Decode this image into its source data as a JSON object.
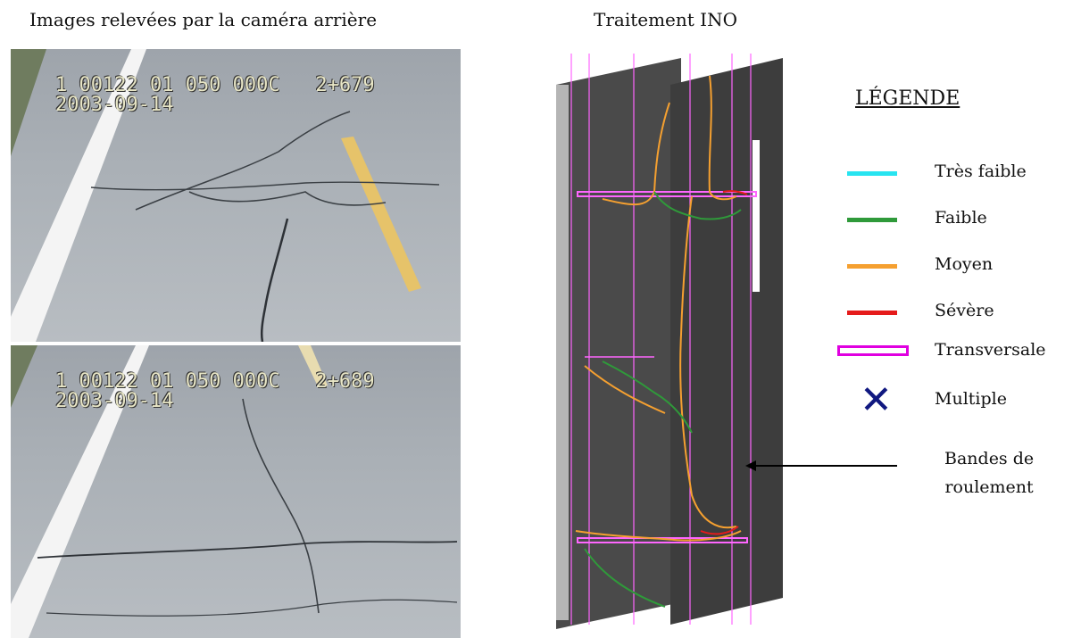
{
  "titles": {
    "left": "Images relevées par la caméra arrière",
    "right": "Traitement INO"
  },
  "camera_frames": [
    {
      "code": "1 00122 01 050 000C",
      "chainage": "2+679",
      "date": "2003-09-14"
    },
    {
      "code": "1 00122 01 050 000C",
      "chainage": "2+689",
      "date": "2003-09-14"
    }
  ],
  "legend": {
    "title": "LÉGENDE",
    "items": [
      {
        "label": "Très faible",
        "symbol": "line",
        "color": "#27e4f0"
      },
      {
        "label": "Faible",
        "symbol": "line",
        "color": "#2f9a3a"
      },
      {
        "label": "Moyen",
        "symbol": "line",
        "color": "#f5a030"
      },
      {
        "label": "Sévère",
        "symbol": "line",
        "color": "#e51b1b"
      },
      {
        "label": "Transversale",
        "symbol": "box",
        "color": "#e000e0"
      },
      {
        "label": "Multiple",
        "symbol": "x",
        "color": "#101880"
      }
    ]
  },
  "annotation": {
    "line1": "Bandes de",
    "line2": "roulement"
  }
}
